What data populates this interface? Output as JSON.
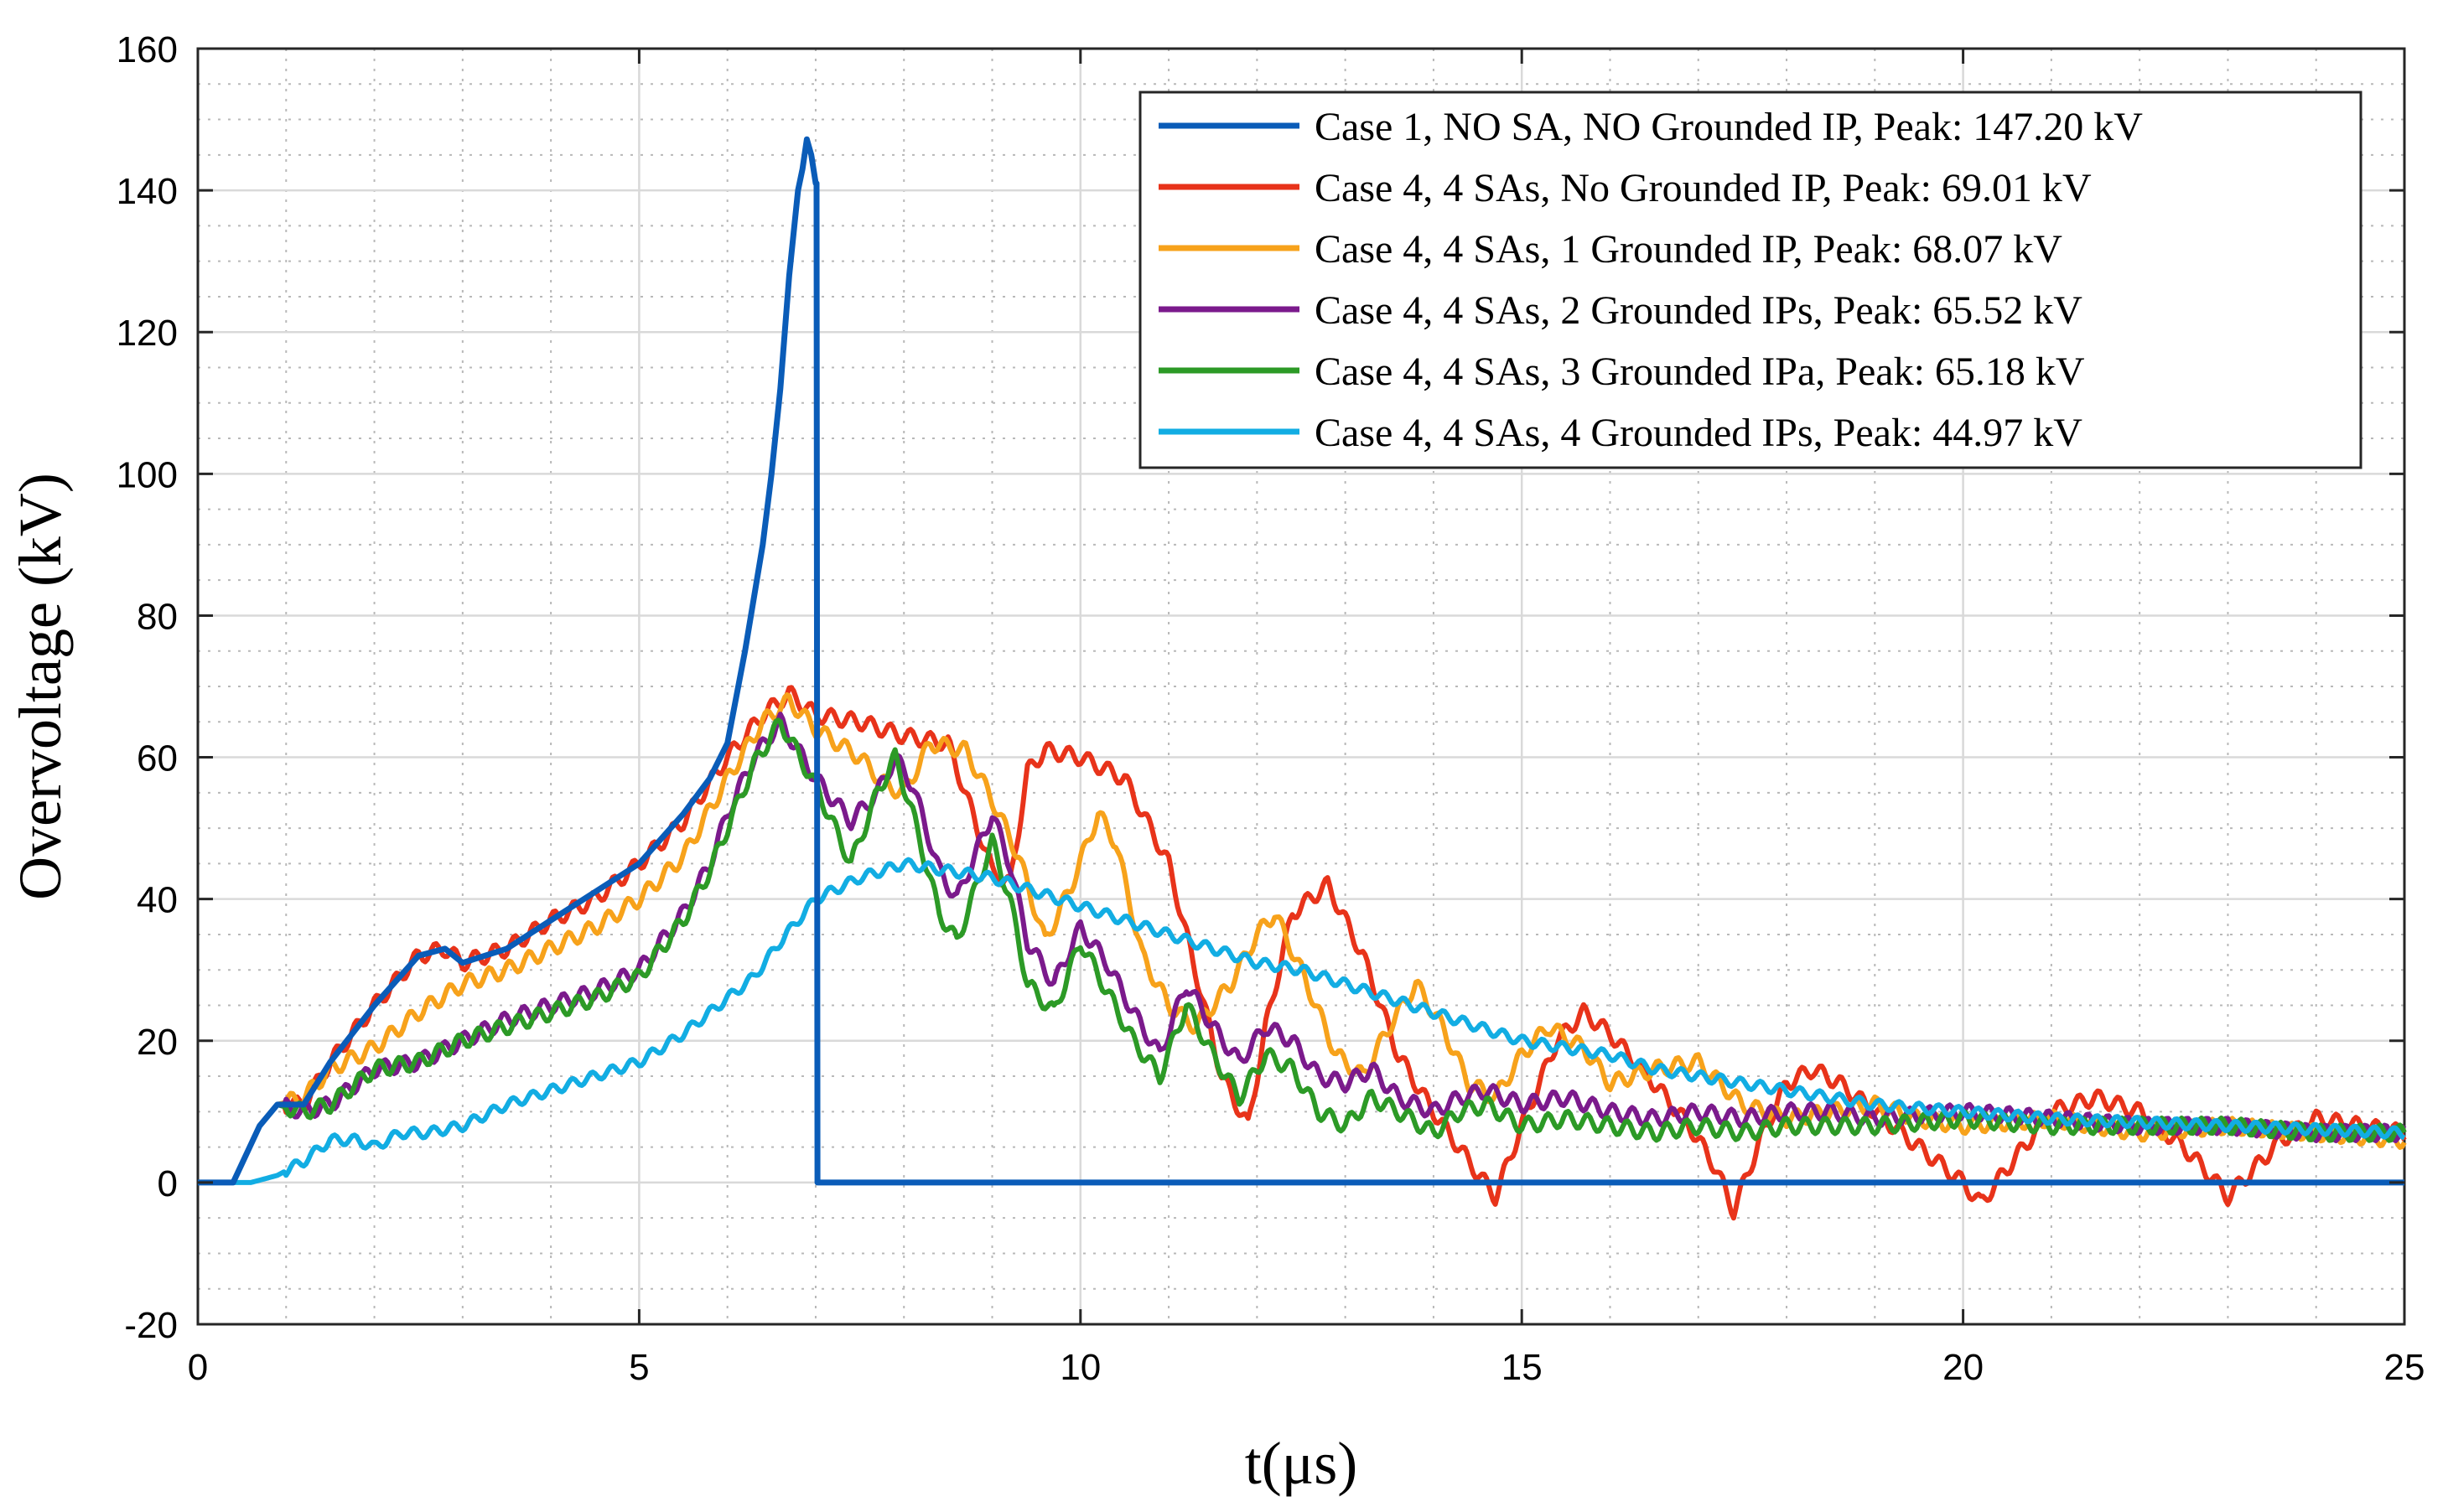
{
  "chart_data": {
    "type": "line",
    "xlabel": "t(μs)",
    "ylabel": "Overvoltage (kV)",
    "xlim": [
      0,
      25
    ],
    "ylim": [
      -20,
      160
    ],
    "xticks": [
      0,
      5,
      10,
      15,
      20,
      25
    ],
    "yticks": [
      -20,
      0,
      20,
      40,
      60,
      80,
      100,
      120,
      140,
      160
    ],
    "grid": true,
    "minor_grid": true,
    "legend_position": "top-right",
    "series": [
      {
        "name": "Case 1, NO SA, NO Grounded IP, Peak: 147.20 kV",
        "color": "#0a5cb8",
        "points": [
          [
            0,
            0
          ],
          [
            0.4,
            0
          ],
          [
            0.7,
            8
          ],
          [
            0.9,
            11
          ],
          [
            1.2,
            11
          ],
          [
            1.5,
            17
          ],
          [
            2,
            25
          ],
          [
            2.5,
            32
          ],
          [
            2.8,
            33
          ],
          [
            3,
            31
          ],
          [
            3.5,
            33
          ],
          [
            4,
            37
          ],
          [
            4.5,
            41
          ],
          [
            5,
            45
          ],
          [
            5.5,
            52
          ],
          [
            5.8,
            57
          ],
          [
            6,
            62
          ],
          [
            6.2,
            75
          ],
          [
            6.4,
            90
          ],
          [
            6.5,
            100
          ],
          [
            6.6,
            112
          ],
          [
            6.7,
            128
          ],
          [
            6.8,
            140
          ],
          [
            6.85,
            143
          ],
          [
            6.9,
            147.2
          ],
          [
            6.95,
            145
          ],
          [
            7,
            141
          ],
          [
            7.01,
            141
          ],
          [
            7.02,
            0
          ],
          [
            25,
            0
          ]
        ]
      },
      {
        "name": "Case 4, 4 SAs, No Grounded IP, Peak: 69.01 kV",
        "color": "#e8331a",
        "points": [
          [
            0,
            0
          ],
          [
            0.4,
            0
          ],
          [
            0.7,
            8
          ],
          [
            0.9,
            11
          ],
          [
            1.2,
            11
          ],
          [
            1.5,
            17
          ],
          [
            2,
            25
          ],
          [
            2.5,
            32
          ],
          [
            2.8,
            33
          ],
          [
            3,
            31
          ],
          [
            3.5,
            33
          ],
          [
            4,
            37
          ],
          [
            4.5,
            40
          ],
          [
            5,
            45
          ],
          [
            5.5,
            51
          ],
          [
            6,
            60
          ],
          [
            6.4,
            66
          ],
          [
            6.7,
            69
          ],
          [
            7,
            66
          ],
          [
            7.5,
            65
          ],
          [
            8,
            63
          ],
          [
            8.5,
            62
          ],
          [
            9,
            44
          ],
          [
            9.2,
            42
          ],
          [
            9.4,
            58
          ],
          [
            9.6,
            61
          ],
          [
            10,
            60
          ],
          [
            10.5,
            57
          ],
          [
            11,
            45
          ],
          [
            11.3,
            30
          ],
          [
            11.6,
            15
          ],
          [
            11.9,
            8
          ],
          [
            12.1,
            22
          ],
          [
            12.4,
            38
          ],
          [
            12.8,
            42
          ],
          [
            13.2,
            32
          ],
          [
            13.6,
            18
          ],
          [
            14,
            10
          ],
          [
            14.4,
            3
          ],
          [
            14.7,
            -2
          ],
          [
            15,
            8
          ],
          [
            15.4,
            20
          ],
          [
            15.7,
            24
          ],
          [
            16,
            21
          ],
          [
            16.5,
            14
          ],
          [
            16.9,
            8
          ],
          [
            17.2,
            2
          ],
          [
            17.4,
            -4
          ],
          [
            17.7,
            6
          ],
          [
            18,
            14
          ],
          [
            18.3,
            16
          ],
          [
            18.6,
            14
          ],
          [
            19,
            10
          ],
          [
            19.5,
            5
          ],
          [
            20,
            0
          ],
          [
            20.2,
            -3
          ],
          [
            20.5,
            2
          ],
          [
            21,
            10
          ],
          [
            21.5,
            12
          ],
          [
            22,
            10
          ],
          [
            22.5,
            5
          ],
          [
            22.8,
            1
          ],
          [
            23,
            -2
          ],
          [
            23.3,
            2
          ],
          [
            23.6,
            6
          ],
          [
            24,
            9
          ],
          [
            25,
            7
          ]
        ]
      },
      {
        "name": "Case 4, 4 SAs, 1 Grounded IP, Peak: 68.07 kV",
        "color": "#f7a21b",
        "points": [
          [
            0,
            0
          ],
          [
            0.4,
            0
          ],
          [
            0.7,
            8
          ],
          [
            0.9,
            11
          ],
          [
            1.2,
            12
          ],
          [
            1.5,
            16
          ],
          [
            2,
            19
          ],
          [
            2.5,
            24
          ],
          [
            3,
            28
          ],
          [
            3.5,
            30
          ],
          [
            4,
            33
          ],
          [
            4.5,
            36
          ],
          [
            5,
            40
          ],
          [
            5.5,
            46
          ],
          [
            6,
            57
          ],
          [
            6.4,
            65
          ],
          [
            6.7,
            68
          ],
          [
            7,
            64
          ],
          [
            7.5,
            60
          ],
          [
            7.8,
            56
          ],
          [
            8,
            55
          ],
          [
            8.3,
            62
          ],
          [
            8.7,
            61
          ],
          [
            9,
            54
          ],
          [
            9.3,
            46
          ],
          [
            9.6,
            34
          ],
          [
            9.9,
            42
          ],
          [
            10.2,
            52
          ],
          [
            10.4,
            48
          ],
          [
            10.7,
            32
          ],
          [
            11,
            25
          ],
          [
            11.3,
            22
          ],
          [
            11.7,
            28
          ],
          [
            12,
            35
          ],
          [
            12.2,
            38
          ],
          [
            12.5,
            30
          ],
          [
            12.9,
            18
          ],
          [
            13.2,
            15
          ],
          [
            13.5,
            22
          ],
          [
            13.8,
            28
          ],
          [
            14.1,
            22
          ],
          [
            14.4,
            14
          ],
          [
            14.7,
            12
          ],
          [
            15,
            18
          ],
          [
            15.3,
            22
          ],
          [
            15.7,
            19
          ],
          [
            16,
            14
          ],
          [
            16.5,
            16
          ],
          [
            17,
            17
          ],
          [
            17.5,
            11
          ],
          [
            18,
            9
          ],
          [
            18.5,
            10
          ],
          [
            19,
            11
          ],
          [
            19.5,
            9
          ],
          [
            20,
            8
          ],
          [
            21,
            9
          ],
          [
            22,
            7
          ],
          [
            23,
            8
          ],
          [
            24,
            7
          ],
          [
            25,
            6
          ]
        ]
      },
      {
        "name": "Case 4, 4 SAs, 2 Grounded IPs, Peak: 65.52 kV",
        "color": "#7b1a8c",
        "points": [
          [
            0,
            0
          ],
          [
            0.4,
            0
          ],
          [
            0.7,
            8
          ],
          [
            0.9,
            11
          ],
          [
            1.2,
            10
          ],
          [
            1.5,
            11
          ],
          [
            2,
            16
          ],
          [
            2.5,
            17
          ],
          [
            3,
            20
          ],
          [
            3.5,
            23
          ],
          [
            4,
            25
          ],
          [
            4.5,
            27
          ],
          [
            5,
            30
          ],
          [
            5.5,
            38
          ],
          [
            5.8,
            45
          ],
          [
            6,
            52
          ],
          [
            6.3,
            60
          ],
          [
            6.6,
            65
          ],
          [
            7,
            57
          ],
          [
            7.4,
            51
          ],
          [
            7.7,
            55
          ],
          [
            7.9,
            60
          ],
          [
            8.1,
            56
          ],
          [
            8.4,
            44
          ],
          [
            8.6,
            40
          ],
          [
            9,
            52
          ],
          [
            9.2,
            45
          ],
          [
            9.4,
            34
          ],
          [
            9.7,
            28
          ],
          [
            10,
            36
          ],
          [
            10.3,
            31
          ],
          [
            10.6,
            24
          ],
          [
            10.9,
            18
          ],
          [
            11.2,
            28
          ],
          [
            11.5,
            22
          ],
          [
            11.8,
            17
          ],
          [
            12.1,
            22
          ],
          [
            12.4,
            20
          ],
          [
            12.7,
            15
          ],
          [
            13,
            14
          ],
          [
            13.3,
            16
          ],
          [
            13.6,
            12
          ],
          [
            14,
            10
          ],
          [
            14.3,
            12
          ],
          [
            14.6,
            13
          ],
          [
            15,
            11
          ],
          [
            15.5,
            12
          ],
          [
            16,
            10
          ],
          [
            16.5,
            9
          ],
          [
            17,
            10
          ],
          [
            17.5,
            9
          ],
          [
            18,
            10
          ],
          [
            18.5,
            10
          ],
          [
            19,
            9
          ],
          [
            20,
            10
          ],
          [
            21,
            9
          ],
          [
            22,
            8
          ],
          [
            23,
            8
          ],
          [
            24,
            7
          ],
          [
            25,
            7
          ]
        ]
      },
      {
        "name": "Case 4, 4 SAs, 3 Grounded IPa, Peak: 65.18 kV",
        "color": "#2c9a26",
        "points": [
          [
            0,
            0
          ],
          [
            0.4,
            0
          ],
          [
            0.7,
            8
          ],
          [
            0.9,
            11
          ],
          [
            1.2,
            10
          ],
          [
            1.5,
            11
          ],
          [
            2,
            16
          ],
          [
            2.5,
            17
          ],
          [
            3,
            20
          ],
          [
            3.5,
            22
          ],
          [
            4,
            24
          ],
          [
            4.5,
            26
          ],
          [
            5,
            29
          ],
          [
            5.5,
            37
          ],
          [
            5.8,
            44
          ],
          [
            6,
            50
          ],
          [
            6.3,
            59
          ],
          [
            6.6,
            65
          ],
          [
            7,
            56
          ],
          [
            7.4,
            45
          ],
          [
            7.7,
            55
          ],
          [
            7.9,
            60
          ],
          [
            8.1,
            52
          ],
          [
            8.4,
            38
          ],
          [
            8.6,
            34
          ],
          [
            9,
            48
          ],
          [
            9.2,
            40
          ],
          [
            9.4,
            28
          ],
          [
            9.7,
            24
          ],
          [
            10,
            34
          ],
          [
            10.3,
            27
          ],
          [
            10.6,
            20
          ],
          [
            10.9,
            15
          ],
          [
            11.2,
            25
          ],
          [
            11.5,
            18
          ],
          [
            11.8,
            12
          ],
          [
            12.1,
            18
          ],
          [
            12.4,
            16
          ],
          [
            12.7,
            10
          ],
          [
            13,
            8
          ],
          [
            13.3,
            12
          ],
          [
            13.6,
            10
          ],
          [
            14,
            7
          ],
          [
            14.3,
            10
          ],
          [
            14.6,
            11
          ],
          [
            15,
            8
          ],
          [
            15.5,
            9
          ],
          [
            16,
            8
          ],
          [
            16.5,
            7
          ],
          [
            17,
            8
          ],
          [
            17.5,
            7
          ],
          [
            18,
            8
          ],
          [
            18.5,
            8
          ],
          [
            19,
            8
          ],
          [
            20,
            9
          ],
          [
            21,
            8
          ],
          [
            22,
            8
          ],
          [
            23,
            8
          ],
          [
            24,
            7
          ],
          [
            25,
            7
          ]
        ]
      },
      {
        "name": "Case 4, 4 SAs, 4 Grounded IPs, Peak: 44.97 kV",
        "color": "#12ade3",
        "points": [
          [
            0,
            0
          ],
          [
            0.6,
            0
          ],
          [
            0.9,
            1
          ],
          [
            1.2,
            3
          ],
          [
            1.5,
            6
          ],
          [
            1.8,
            6
          ],
          [
            2,
            5
          ],
          [
            2.3,
            7
          ],
          [
            2.6,
            7
          ],
          [
            3,
            8
          ],
          [
            3.5,
            11
          ],
          [
            4,
            13
          ],
          [
            4.5,
            15
          ],
          [
            5,
            17
          ],
          [
            5.5,
            21
          ],
          [
            6,
            26
          ],
          [
            6.3,
            29
          ],
          [
            6.6,
            34
          ],
          [
            7,
            40
          ],
          [
            7.5,
            43
          ],
          [
            8,
            44.97
          ],
          [
            8.5,
            44
          ],
          [
            9,
            43
          ],
          [
            9.5,
            41
          ],
          [
            10,
            39
          ],
          [
            10.5,
            37
          ],
          [
            11,
            35
          ],
          [
            11.5,
            33
          ],
          [
            12,
            31
          ],
          [
            12.5,
            30
          ],
          [
            13,
            28
          ],
          [
            13.5,
            26
          ],
          [
            14,
            24
          ],
          [
            14.5,
            22
          ],
          [
            15,
            20
          ],
          [
            15.5,
            19
          ],
          [
            16,
            18
          ],
          [
            16.5,
            16
          ],
          [
            17,
            15
          ],
          [
            17.5,
            14
          ],
          [
            18,
            13
          ],
          [
            18.5,
            12
          ],
          [
            19,
            11
          ],
          [
            20,
            10
          ],
          [
            21,
            9
          ],
          [
            22,
            8.5
          ],
          [
            23,
            8
          ],
          [
            24,
            7.5
          ],
          [
            25,
            7
          ]
        ]
      }
    ]
  }
}
